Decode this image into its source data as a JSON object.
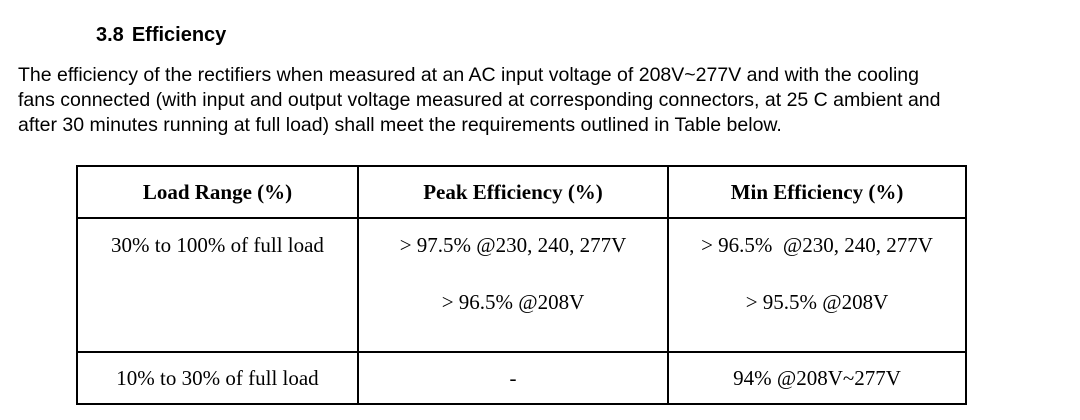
{
  "section": {
    "number": "3.8",
    "title": "Efficiency",
    "paragraph_lines": [
      "The efficiency of the rectifiers when measured at an AC input voltage of 208V~277V and with the cooling",
      "fans connected (with input and output voltage measured at corresponding connectors, at 25 C ambient and",
      "after 30 minutes running at full load) shall meet the requirements outlined in Table below."
    ]
  },
  "table": {
    "header": [
      "Load Range (%)",
      "Peak Efficiency (%)",
      "Min Efficiency (%)"
    ],
    "rows": [
      [
        [
          "30% to 100% of full load"
        ],
        [
          "> 97.5% @230, 240, 277V",
          "> 96.5% @208V"
        ],
        [
          "> 96.5%  @230, 240, 277V",
          "> 95.5% @208V"
        ]
      ],
      [
        [
          "10% to 30% of full load"
        ],
        [
          "-"
        ],
        [
          "94% @208V~277V"
        ]
      ]
    ]
  }
}
